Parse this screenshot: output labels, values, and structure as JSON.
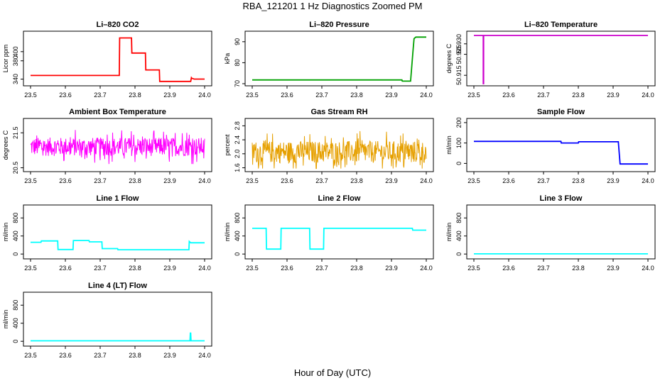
{
  "title": "RBA_121201  1 Hz Diagnostics Zoomed PM",
  "xlabel": "Hour of Day (UTC)",
  "chart_data": [
    {
      "type": "line",
      "title": "Li–820 CO2",
      "ylabel": "Licor ppm",
      "color": "#ff0000",
      "xlim": [
        23.5,
        24.0
      ],
      "ylim": [
        330,
        440
      ],
      "yticks": [
        "340",
        "380",
        "400"
      ],
      "ytick_values": [
        340,
        380,
        400
      ],
      "xticks": [
        "23.5",
        "23.6",
        "23.7",
        "23.8",
        "23.9",
        "24.0"
      ],
      "series": [
        {
          "x": [
            23.5,
            23.755,
            23.756,
            23.79,
            23.791,
            23.83,
            23.831,
            23.87,
            23.871,
            23.96,
            23.962,
            23.963,
            23.97,
            24.0
          ],
          "y": [
            348,
            348,
            430,
            430,
            397,
            397,
            360,
            360,
            335,
            335,
            343,
            342,
            340,
            340
          ]
        }
      ]
    },
    {
      "type": "line",
      "title": "Li–820 Pressure",
      "ylabel": "kPa",
      "color": "#00a000",
      "xlim": [
        23.5,
        24.0
      ],
      "ylim": [
        70,
        94
      ],
      "yticks": [
        "70",
        "80",
        "90"
      ],
      "ytick_values": [
        70,
        80,
        90
      ],
      "xticks": [
        "23.5",
        "23.6",
        "23.7",
        "23.8",
        "23.9",
        "24.0"
      ],
      "series": [
        {
          "x": [
            23.5,
            23.93,
            23.931,
            23.955,
            23.962,
            23.965,
            23.97,
            24.0
          ],
          "y": [
            71.8,
            71.8,
            71.2,
            71.2,
            86,
            91.5,
            92.2,
            92.2
          ]
        }
      ]
    },
    {
      "type": "line",
      "title": "Li–820 Temperature",
      "ylabel": "degrees C",
      "color": "#cc00cc",
      "xlim": [
        23.5,
        24.0
      ],
      "ylim": [
        50.911,
        50.935
      ],
      "yticks": [
        "50.915",
        "50.925",
        "50.930"
      ],
      "ytick_values": [
        50.915,
        50.925,
        50.93
      ],
      "xticks": [
        "23.5",
        "23.6",
        "23.7",
        "23.8",
        "23.9",
        "24.0"
      ],
      "series": [
        {
          "x": [
            23.5,
            23.527,
            23.527,
            23.528,
            23.528,
            24.0
          ],
          "y": [
            50.934,
            50.934,
            50.911,
            50.911,
            50.934,
            50.934
          ]
        }
      ]
    },
    {
      "type": "line",
      "title": "Ambient Box Temperature",
      "ylabel": "degrees C",
      "color": "#ff00ff",
      "xlim": [
        23.5,
        24.0
      ],
      "ylim": [
        20.45,
        21.85
      ],
      "yticks": [
        "20.5",
        "21.5"
      ],
      "ytick_values": [
        20.5,
        21.5
      ],
      "xticks": [
        "23.5",
        "23.6",
        "23.7",
        "23.8",
        "23.9",
        "24.0"
      ],
      "noise": {
        "base": 21.1,
        "amp": 0.38,
        "dense": true
      },
      "series": [
        {
          "x": [
            23.5,
            24.0
          ],
          "y": [
            21.1,
            21.1
          ]
        }
      ]
    },
    {
      "type": "line",
      "title": "Gas Stream RH",
      "ylabel": "percent",
      "color": "#e6a000",
      "xlim": [
        23.5,
        24.0
      ],
      "ylim": [
        1.55,
        2.95
      ],
      "yticks": [
        "1.6",
        "2.0",
        "2.4",
        "2.8"
      ],
      "ytick_values": [
        1.6,
        2.0,
        2.4,
        2.8
      ],
      "xticks": [
        "23.5",
        "23.6",
        "23.7",
        "23.8",
        "23.9",
        "24.0"
      ],
      "noise": {
        "base": 2.05,
        "amp": 0.45,
        "dense": true
      },
      "series": [
        {
          "x": [
            23.5,
            24.0
          ],
          "y": [
            2.05,
            2.05
          ]
        }
      ]
    },
    {
      "type": "line",
      "title": "Sample Flow",
      "ylabel": "ml/min",
      "color": "#0000ff",
      "xlim": [
        23.5,
        24.0
      ],
      "ylim": [
        -30,
        210
      ],
      "yticks": [
        "0",
        "100",
        "200"
      ],
      "ytick_values": [
        0,
        100,
        200
      ],
      "xticks": [
        "23.5",
        "23.6",
        "23.7",
        "23.8",
        "23.9",
        "24.0"
      ],
      "series": [
        {
          "x": [
            23.5,
            23.75,
            23.751,
            23.8,
            23.801,
            23.915,
            23.92,
            24.0
          ],
          "y": [
            108,
            108,
            100,
            100,
            106,
            106,
            -3,
            -3
          ]
        }
      ]
    },
    {
      "type": "line",
      "title": "Line 1 Flow",
      "ylabel": "ml/min",
      "color": "#00ffff",
      "xlim": [
        23.5,
        24.0
      ],
      "ylim": [
        -60,
        1040
      ],
      "yticks": [
        "0",
        "400",
        "800"
      ],
      "ytick_values": [
        0,
        400,
        800
      ],
      "xticks": [
        "23.5",
        "23.6",
        "23.7",
        "23.8",
        "23.9",
        "24.0"
      ],
      "series": [
        {
          "x": [
            23.5,
            23.53,
            23.531,
            23.578,
            23.579,
            23.622,
            23.623,
            23.668,
            23.669,
            23.705,
            23.706,
            23.75,
            23.751,
            23.955,
            23.956,
            23.96,
            24.0
          ],
          "y": [
            260,
            260,
            290,
            290,
            100,
            100,
            300,
            300,
            270,
            270,
            120,
            120,
            95,
            95,
            280,
            250,
            250
          ]
        }
      ]
    },
    {
      "type": "line",
      "title": "Line 2 Flow",
      "ylabel": "ml/min",
      "color": "#00ffff",
      "xlim": [
        23.5,
        24.0
      ],
      "ylim": [
        -60,
        1040
      ],
      "yticks": [
        "0",
        "400",
        "800"
      ],
      "ytick_values": [
        0,
        400,
        800
      ],
      "xticks": [
        "23.5",
        "23.6",
        "23.7",
        "23.8",
        "23.9",
        "24.0"
      ],
      "series": [
        {
          "x": [
            23.5,
            23.54,
            23.541,
            23.582,
            23.583,
            23.665,
            23.666,
            23.705,
            23.706,
            23.96,
            23.961,
            24.0
          ],
          "y": [
            570,
            570,
            110,
            110,
            570,
            570,
            110,
            110,
            570,
            570,
            530,
            530
          ]
        }
      ]
    },
    {
      "type": "line",
      "title": "Line 3 Flow",
      "ylabel": "ml/min",
      "color": "#00ffff",
      "xlim": [
        23.5,
        24.0
      ],
      "ylim": [
        -60,
        1040
      ],
      "yticks": [
        "0",
        "400",
        "800"
      ],
      "ytick_values": [
        0,
        400,
        800
      ],
      "xticks": [
        "23.5",
        "23.6",
        "23.7",
        "23.8",
        "23.9",
        "24.0"
      ],
      "series": [
        {
          "x": [
            23.5,
            24.0
          ],
          "y": [
            5,
            5
          ]
        }
      ]
    },
    {
      "type": "line",
      "title": "Line 4 (LT) Flow",
      "ylabel": "ml/min",
      "color": "#00ffff",
      "xlim": [
        23.5,
        24.0
      ],
      "ylim": [
        -60,
        1040
      ],
      "yticks": [
        "0",
        "400",
        "800"
      ],
      "ytick_values": [
        0,
        400,
        800
      ],
      "xticks": [
        "23.5",
        "23.6",
        "23.7",
        "23.8",
        "23.9",
        "24.0"
      ],
      "series": [
        {
          "x": [
            23.5,
            23.958,
            23.959,
            23.96,
            23.961,
            24.0
          ],
          "y": [
            10,
            10,
            180,
            180,
            10,
            10
          ]
        }
      ]
    }
  ]
}
